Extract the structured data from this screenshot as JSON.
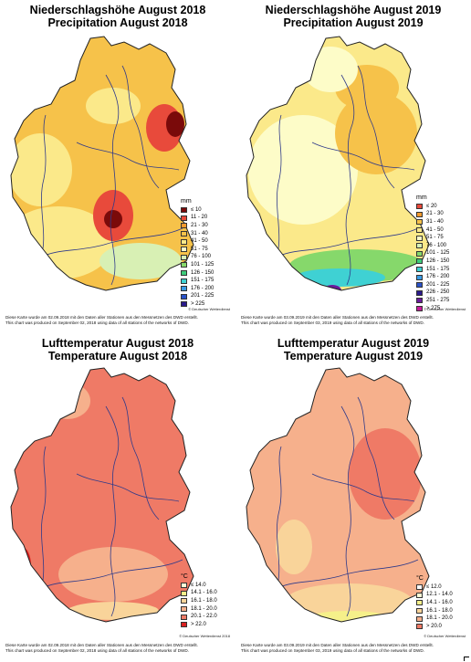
{
  "panels": [
    {
      "title_line1": "Niederschlagshöhe August 2018",
      "title_line2": "Precipitation August 2018",
      "unit": "mm",
      "legend": [
        {
          "label": "≤ 10",
          "color": "#7a0a0a"
        },
        {
          "label": "11 - 20",
          "color": "#e84a3b"
        },
        {
          "label": "21 - 30",
          "color": "#f39a2e"
        },
        {
          "label": "31 - 40",
          "color": "#f6c24a"
        },
        {
          "label": "41 - 50",
          "color": "#fbe98a"
        },
        {
          "label": "51 - 75",
          "color": "#fdfcc8"
        },
        {
          "label": "76 - 100",
          "color": "#d8f0b4"
        },
        {
          "label": "101 - 125",
          "color": "#86d86b"
        },
        {
          "label": "126 - 150",
          "color": "#3ecb7a"
        },
        {
          "label": "151 - 175",
          "color": "#3fd1d3"
        },
        {
          "label": "176 - 200",
          "color": "#3a9be5"
        },
        {
          "label": "201 - 225",
          "color": "#2a52c8"
        },
        {
          "label": "> 225",
          "color": "#2a1a8c"
        }
      ],
      "copyright": "© Deutscher Wetterdienst",
      "foot1": "Diese Karte wurde am 02.09.2018 mit den Daten aller Stationen aus den Messnetzen des DWD erstellt.",
      "foot2": "This chart was produced on September 02, 2018 using data of all stations of the networks of DWD."
    },
    {
      "title_line1": "Niederschlagshöhe August 2019",
      "title_line2": "Precipitation August 2019",
      "unit": "mm",
      "legend": [
        {
          "label": "≤ 20",
          "color": "#e84a3b"
        },
        {
          "label": "21 - 30",
          "color": "#f39a2e"
        },
        {
          "label": "31 - 40",
          "color": "#f6c24a"
        },
        {
          "label": "41 - 50",
          "color": "#fbe98a"
        },
        {
          "label": "51 - 75",
          "color": "#fdfcc8"
        },
        {
          "label": "76 - 100",
          "color": "#d8f0b4"
        },
        {
          "label": "101 - 125",
          "color": "#86d86b"
        },
        {
          "label": "126 - 150",
          "color": "#3ecb7a"
        },
        {
          "label": "151 - 175",
          "color": "#3fd1d3"
        },
        {
          "label": "176 - 200",
          "color": "#3a9be5"
        },
        {
          "label": "201 - 225",
          "color": "#2a52c8"
        },
        {
          "label": "226 - 250",
          "color": "#2a1a8c"
        },
        {
          "label": "251 - 275",
          "color": "#6a1a9c"
        },
        {
          "label": "> 275",
          "color": "#c61a9a"
        }
      ],
      "copyright": "© Deutscher Wetterdienst",
      "foot1": "Diese Karte wurde am 03.09.2019 mit den Daten aller Stationen aus den Messnetzen des DWD erstellt.",
      "foot2": "This chart was produced on September 03, 2019 using data of all stations of the networks of DWD."
    },
    {
      "title_line1": "Lufttemperatur August 2018",
      "title_line2": "Temperature August 2018",
      "unit": "°C",
      "legend": [
        {
          "label": "≤ 14.0",
          "color": "#fdfcd6"
        },
        {
          "label": "14.1 - 16.0",
          "color": "#f6f08a"
        },
        {
          "label": "16.1 - 18.0",
          "color": "#f9d49a"
        },
        {
          "label": "18.1 - 20.0",
          "color": "#f6b08c"
        },
        {
          "label": "20.1 - 22.0",
          "color": "#ef7a66"
        },
        {
          "label": "> 22.0",
          "color": "#d92020"
        }
      ],
      "copyright": "© Deutscher Wetterdienst 2018",
      "foot1": "Diese Karte wurde am 02.09.2018 mit den Daten aller Stationen aus den Messnetzen des DWD erstellt.",
      "foot2": "This chart was produced on September 02, 2018 using data of all stations of the networks of DWD."
    },
    {
      "title_line1": "Lufttemperatur August 2019",
      "title_line2": "Temperature August 2019",
      "unit": "°C",
      "legend": [
        {
          "label": "≤ 12.0",
          "color": "#ffffff"
        },
        {
          "label": "12.1 - 14.0",
          "color": "#fdfcd6"
        },
        {
          "label": "14.1 - 16.0",
          "color": "#f6f08a"
        },
        {
          "label": "16.1 - 18.0",
          "color": "#f9d49a"
        },
        {
          "label": "18.1 - 20.0",
          "color": "#f6b08c"
        },
        {
          "label": "> 20.0",
          "color": "#ef7a66"
        }
      ],
      "copyright": "© Deutscher Wetterdienst",
      "foot1": "Diese Karte wurde am 03.09.2019 mit den Daten aller Stationen aus den Messnetzen des DWD erstellt.",
      "foot2": "This chart was produced on September 03, 2019 using data of all stations of the networks of DWD."
    }
  ],
  "map_fill": {
    "p0_base": "#f6c24a",
    "p0_alt": "#fbe98a",
    "p0_hot": "#e84a3b",
    "p0_extreme": "#7a0a0a",
    "p0_wet": "#d8f0b4",
    "p1_base": "#fbe98a",
    "p1_alt": "#f6c24a",
    "p1_light": "#fdfcc8",
    "p1_green": "#86d86b",
    "p1_blue": "#3fd1d3",
    "p1_purple": "#6a1a9c",
    "p2_base": "#ef7a66",
    "p2_alt": "#f6b08c",
    "p2_hot": "#d92020",
    "p2_cool": "#f9d49a",
    "p3_base": "#f6b08c",
    "p3_alt": "#ef7a66",
    "p3_cool": "#f9d49a",
    "p3_cold": "#f6f08a",
    "river": "#2f3a8a",
    "border": "#222222"
  }
}
